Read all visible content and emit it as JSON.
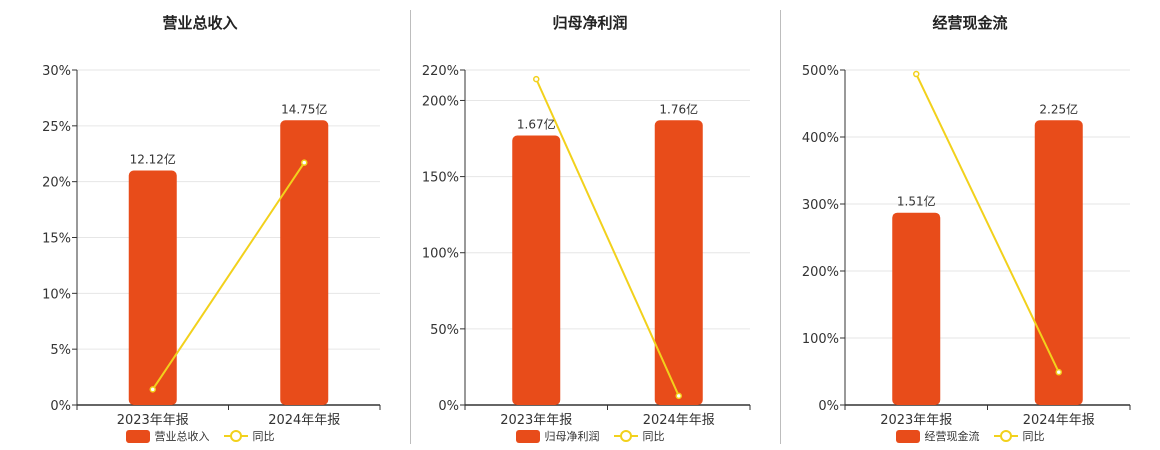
{
  "colors": {
    "bar": "#e84c1a",
    "line": "#f2d11c",
    "axis": "#333333",
    "grid": "#e6e6e6"
  },
  "chart_data": [
    {
      "type": "bar",
      "title": "营业总收入",
      "categories": [
        "2023年年报",
        "2024年年报"
      ],
      "series": [
        {
          "name": "营业总收入",
          "type": "bar",
          "values": [
            21,
            25.5
          ],
          "labels": [
            "12.12亿",
            "14.75亿"
          ]
        },
        {
          "name": "同比",
          "type": "line",
          "values": [
            1.4,
            21.7
          ]
        }
      ],
      "yticks": [
        "0%",
        "5%",
        "10%",
        "15%",
        "20%",
        "25%",
        "30%"
      ],
      "ylim": [
        0,
        30
      ],
      "legend": "bottom",
      "grid": true
    },
    {
      "type": "bar",
      "title": "归母净利润",
      "categories": [
        "2023年年报",
        "2024年年报"
      ],
      "series": [
        {
          "name": "归母净利润",
          "type": "bar",
          "values": [
            177,
            187
          ],
          "labels": [
            "1.67亿",
            "1.76亿"
          ]
        },
        {
          "name": "同比",
          "type": "line",
          "values": [
            214,
            6
          ]
        }
      ],
      "yticks": [
        "0%",
        "50%",
        "100%",
        "150%",
        "200%",
        "220%"
      ],
      "ylim": [
        0,
        220
      ],
      "legend": "bottom",
      "grid": true
    },
    {
      "type": "bar",
      "title": "经营现金流",
      "categories": [
        "2023年年报",
        "2024年年报"
      ],
      "series": [
        {
          "name": "经营现金流",
          "type": "bar",
          "values": [
            287,
            425
          ],
          "labels": [
            "1.51亿",
            "2.25亿"
          ]
        },
        {
          "name": "同比",
          "type": "line",
          "values": [
            494,
            49
          ]
        }
      ],
      "yticks": [
        "0%",
        "100%",
        "200%",
        "300%",
        "400%",
        "500%"
      ],
      "ylim": [
        0,
        500
      ],
      "legend": "bottom",
      "grid": true
    }
  ]
}
